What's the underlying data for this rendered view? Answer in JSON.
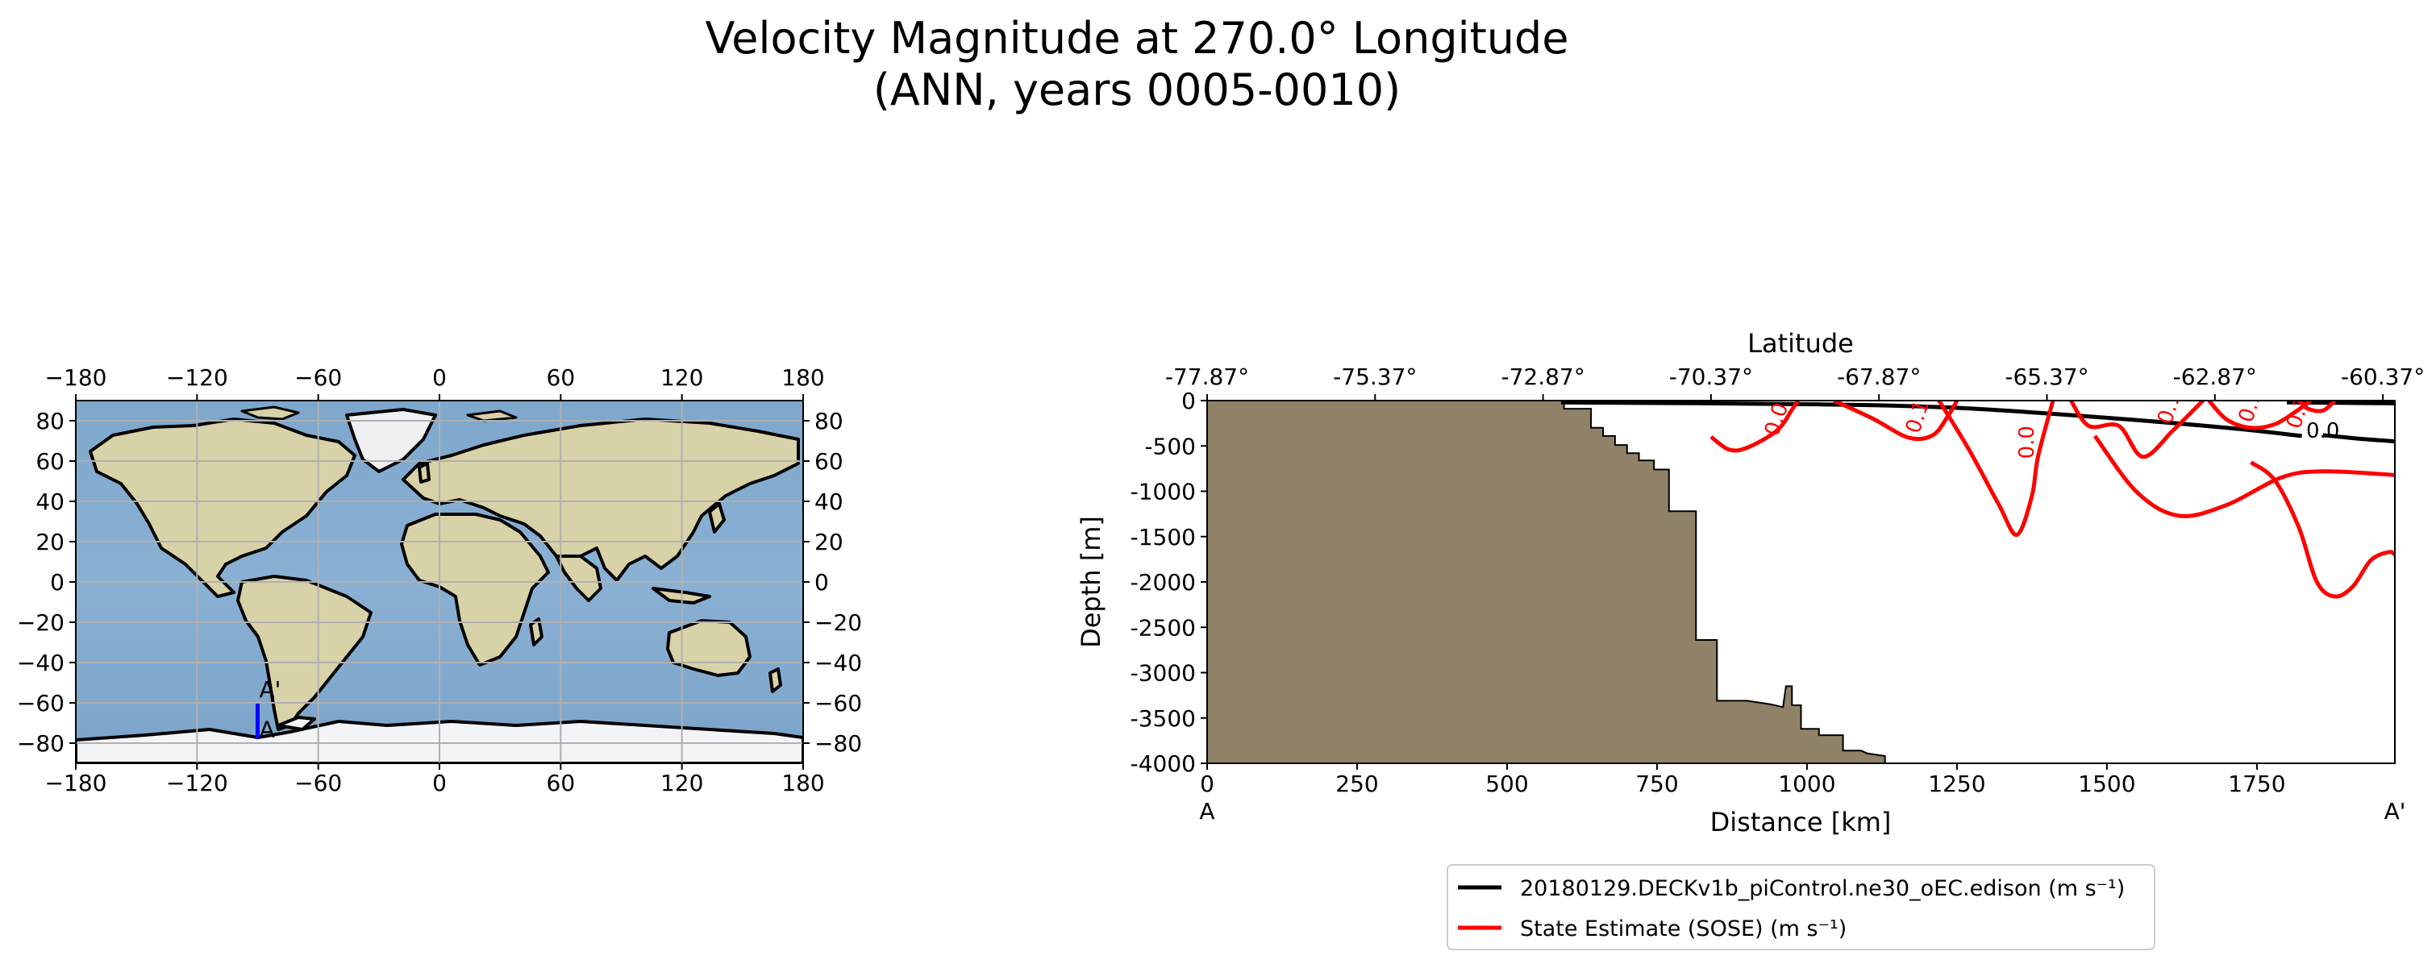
{
  "title_line1": "Velocity Magnitude at 270.0° Longitude",
  "title_line2": "(ANN, years 0005-0010)",
  "colors": {
    "ocean": "#82a9cc",
    "land": "#d8d2a8",
    "ice": "#f2f4f6",
    "seafloor": "#8f8268",
    "model_line": "#000000",
    "obs_line": "#ff0000",
    "transect": "#0000ff",
    "grid": "#b0b0b0"
  },
  "map": {
    "lon_ticks": [
      "−180",
      "−120",
      "−60",
      "0",
      "60",
      "120",
      "180"
    ],
    "lat_ticks": [
      "80",
      "60",
      "40",
      "20",
      "0",
      "−20",
      "−40",
      "−60",
      "−80"
    ],
    "lat_tick_values": [
      80,
      60,
      40,
      20,
      0,
      -20,
      -40,
      -60,
      -80
    ],
    "lon_tick_values": [
      -180,
      -120,
      -60,
      0,
      60,
      120,
      180
    ],
    "transect_start_label": "A",
    "transect_end_label": "A'",
    "transect": {
      "lon": -90,
      "lat_start": -77.87,
      "lat_end": -60.37
    }
  },
  "chart_data": {
    "type": "line",
    "title": "",
    "xlabel": "Distance [km]",
    "ylabel": "Depth [m]",
    "secondary_xlabel": "Latitude",
    "xlim": [
      0,
      1980
    ],
    "ylim": [
      -4000,
      0
    ],
    "x_ticks": [
      0,
      250,
      500,
      750,
      1000,
      1250,
      1500,
      1750
    ],
    "y_ticks": [
      0,
      -500,
      -1000,
      -1500,
      -2000,
      -2500,
      -3000,
      -3500,
      -4000
    ],
    "latitude_ticks": [
      "-77.87°",
      "-75.37°",
      "-72.87°",
      "-70.37°",
      "-67.87°",
      "-65.37°",
      "-62.87°",
      "-60.37°"
    ],
    "latitude_tick_positions_km": [
      0,
      280,
      560,
      840,
      1120,
      1400,
      1680,
      1960
    ],
    "x_start_label": "A",
    "x_end_label": "A'",
    "bathymetry": [
      [
        0,
        0
      ],
      [
        595,
        0
      ],
      [
        595,
        -90
      ],
      [
        640,
        -90
      ],
      [
        640,
        -300
      ],
      [
        660,
        -300
      ],
      [
        660,
        -390
      ],
      [
        680,
        -390
      ],
      [
        680,
        -490
      ],
      [
        700,
        -490
      ],
      [
        700,
        -580
      ],
      [
        720,
        -580
      ],
      [
        720,
        -660
      ],
      [
        745,
        -660
      ],
      [
        745,
        -760
      ],
      [
        770,
        -760
      ],
      [
        770,
        -1220
      ],
      [
        815,
        -1220
      ],
      [
        815,
        -2640
      ],
      [
        850,
        -2640
      ],
      [
        850,
        -3310
      ],
      [
        900,
        -3310
      ],
      [
        940,
        -3350
      ],
      [
        960,
        -3380
      ],
      [
        965,
        -3150
      ],
      [
        975,
        -3150
      ],
      [
        975,
        -3360
      ],
      [
        990,
        -3360
      ],
      [
        990,
        -3620
      ],
      [
        1020,
        -3620
      ],
      [
        1020,
        -3690
      ],
      [
        1060,
        -3690
      ],
      [
        1060,
        -3860
      ],
      [
        1090,
        -3860
      ],
      [
        1100,
        -3890
      ],
      [
        1130,
        -3920
      ],
      [
        1130,
        -4000
      ],
      [
        0,
        -4000
      ]
    ],
    "series": [
      {
        "name": "20180129.DECKv1b_piControl.ne30_oEC.edison (m s⁻¹)",
        "color": "#000000",
        "contours": [
          {
            "level_label": "0.0",
            "label_at": [
              1860,
              -410
            ],
            "label_rotation": 0,
            "points": [
              [
                590,
                -20
              ],
              [
                1000,
                -40
              ],
              [
                1250,
                -80
              ],
              [
                1500,
                -190
              ],
              [
                1700,
                -300
              ],
              [
                1825,
                -390
              ]
            ]
          },
          {
            "level_label": "",
            "points": [
              [
                1860,
                -380
              ],
              [
                1920,
                -420
              ],
              [
                1980,
                -450
              ]
            ]
          },
          {
            "level_label": "",
            "points": [
              [
                1800,
                -20
              ],
              [
                1980,
                -30
              ]
            ]
          }
        ]
      },
      {
        "name": "State Estimate (SOSE) (m s⁻¹)",
        "color": "#ff0000",
        "contours": [
          {
            "level_label": "0.0",
            "label_at": [
              960,
              -230
            ],
            "label_rotation": -72,
            "points": [
              [
                840,
                -400
              ],
              [
                870,
                -540
              ],
              [
                900,
                -520
              ],
              [
                950,
                -330
              ],
              [
                975,
                -100
              ],
              [
                985,
                0
              ]
            ]
          },
          {
            "level_label": "0.1",
            "label_at": [
              1195,
              -200
            ],
            "label_rotation": -72,
            "points": [
              [
                1045,
                0
              ],
              [
                1110,
                -200
              ],
              [
                1170,
                -410
              ],
              [
                1210,
                -380
              ],
              [
                1235,
                -170
              ],
              [
                1250,
                0
              ]
            ]
          },
          {
            "level_label": "0.0",
            "label_at": [
              1378,
              -460
            ],
            "label_rotation": -90,
            "points": [
              [
                1220,
                0
              ],
              [
                1270,
                -540
              ],
              [
                1320,
                -1150
              ],
              [
                1350,
                -1480
              ],
              [
                1375,
                -1050
              ],
              [
                1385,
                -620
              ],
              [
                1410,
                0
              ]
            ]
          },
          {
            "level_label": "0.1",
            "label_at": [
              1615,
              -100
            ],
            "label_rotation": -72,
            "points": [
              [
                1440,
                0
              ],
              [
                1470,
                -280
              ],
              [
                1520,
                -280
              ],
              [
                1560,
                -620
              ],
              [
                1610,
                -330
              ],
              [
                1645,
                -100
              ],
              [
                1660,
                0
              ]
            ]
          },
          {
            "level_label": "0.1",
            "label_at": [
              1750,
              -80
            ],
            "label_rotation": -72,
            "points": [
              [
                1670,
                0
              ],
              [
                1700,
                -210
              ],
              [
                1740,
                -300
              ],
              [
                1780,
                -260
              ],
              [
                1815,
                -120
              ],
              [
                1840,
                0
              ]
            ]
          },
          {
            "level_label": "0.1",
            "label_at": [
              1830,
              -150
            ],
            "label_rotation": -72,
            "points": [
              [
                1820,
                0
              ],
              [
                1835,
                -90
              ],
              [
                1860,
                -110
              ],
              [
                1880,
                0
              ]
            ]
          },
          {
            "level_label": "",
            "points": [
              [
                1480,
                -390
              ],
              [
                1550,
                -1010
              ],
              [
                1620,
                -1270
              ],
              [
                1700,
                -1150
              ],
              [
                1790,
                -850
              ],
              [
                1860,
                -780
              ],
              [
                1980,
                -820
              ]
            ]
          },
          {
            "level_label": "",
            "points": [
              [
                1740,
                -680
              ],
              [
                1780,
                -880
              ],
              [
                1820,
                -1400
              ],
              [
                1850,
                -2000
              ],
              [
                1880,
                -2160
              ],
              [
                1910,
                -2050
              ],
              [
                1940,
                -1760
              ],
              [
                1970,
                -1670
              ],
              [
                1980,
                -1700
              ]
            ]
          }
        ]
      }
    ],
    "legend": {
      "placement": "bottom-center",
      "entries": [
        "20180129.DECKv1b_piControl.ne30_oEC.edison (m s⁻¹)",
        "State Estimate (SOSE) (m s⁻¹)"
      ]
    }
  }
}
